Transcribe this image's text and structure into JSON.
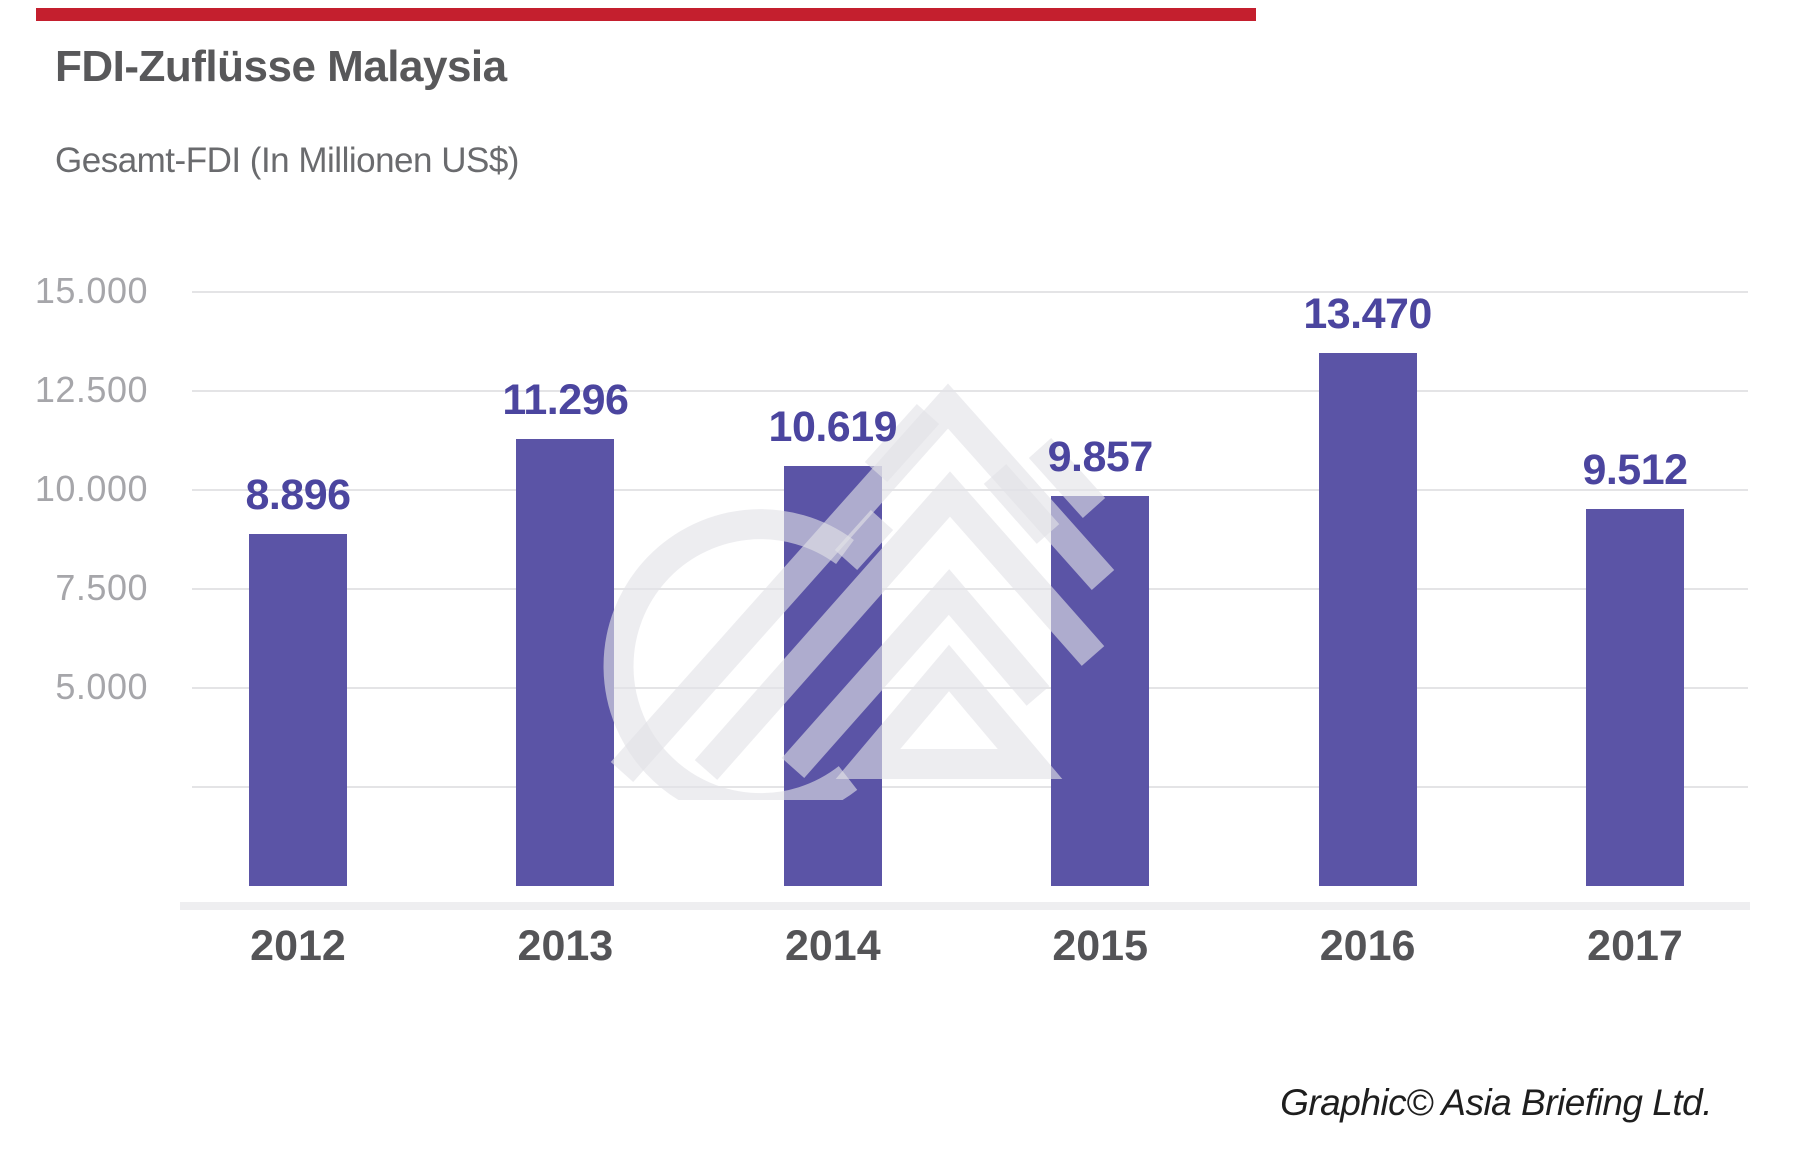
{
  "accent_bar": {
    "color": "#C41F2E"
  },
  "header": {
    "title": "FDI-Zuflüsse Malaysia",
    "subtitle": "Gesamt-FDI (In Millionen US$)"
  },
  "chart_data": {
    "type": "bar",
    "title": "FDI-Zuflüsse Malaysia",
    "subtitle": "Gesamt-FDI (In Millionen US$)",
    "unit": "Millionen US$",
    "categories": [
      "2012",
      "2013",
      "2014",
      "2015",
      "2016",
      "2017"
    ],
    "values": [
      8896,
      11296,
      10619,
      9857,
      13470,
      9512
    ],
    "value_labels": [
      "8.896",
      "11.296",
      "10.619",
      "9.857",
      "13.470",
      "9.512"
    ],
    "ylim": [
      0,
      15000
    ],
    "yticks": [
      {
        "value": 2500,
        "label": ""
      },
      {
        "value": 5000,
        "label": "5.000"
      },
      {
        "value": 7500,
        "label": "7.500"
      },
      {
        "value": 10000,
        "label": "10.000"
      },
      {
        "value": 12500,
        "label": "12.500"
      },
      {
        "value": 15000,
        "label": "15.000"
      }
    ],
    "grid": "horizontal",
    "legend": "none",
    "bar_color": "#5B54A6",
    "value_label_color": "#4B459F",
    "axis_label_color": "#A6A6AA",
    "category_label_color": "#545457",
    "gridline_color": "#E4E4E6",
    "watermark": "asia-briefing-logo-watermark"
  },
  "footer": {
    "credit": "Graphic© Asia Briefing Ltd."
  }
}
